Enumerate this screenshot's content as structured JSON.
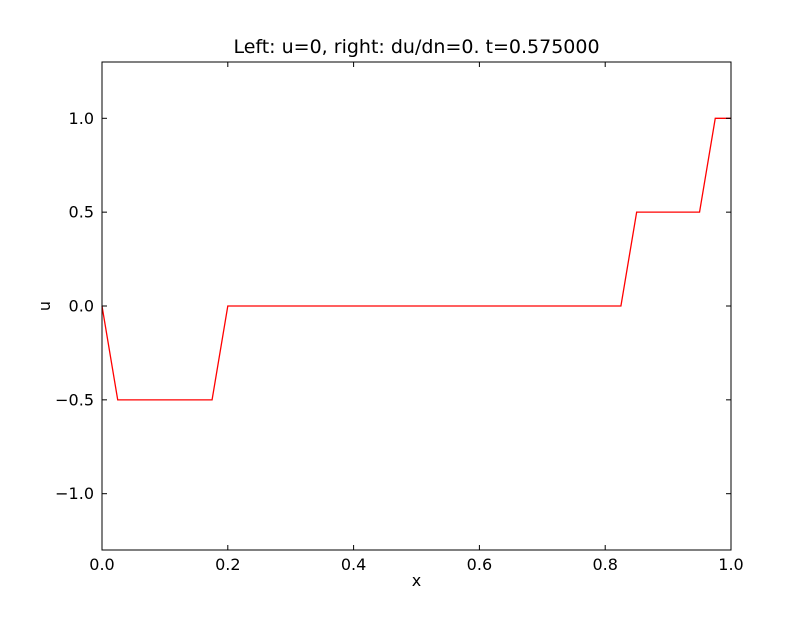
{
  "chart_data": {
    "type": "line",
    "title": "Left: u=0, right: du/dn=0. t=0.575000",
    "xlabel": "x",
    "ylabel": "u",
    "xlim": [
      0.0,
      1.0
    ],
    "ylim": [
      -1.3,
      1.3
    ],
    "grid": false,
    "x_ticks": [
      0.0,
      0.2,
      0.4,
      0.6,
      0.8,
      1.0
    ],
    "x_tick_labels": [
      "0.0",
      "0.2",
      "0.4",
      "0.6",
      "0.8",
      "1.0"
    ],
    "y_ticks": [
      -1.0,
      -0.5,
      0.0,
      0.5,
      1.0
    ],
    "y_tick_labels": [
      "−1.0",
      "−0.5",
      "0.0",
      "0.5",
      "1.0"
    ],
    "series": [
      {
        "color": "#ff0000",
        "x": [
          0.0,
          0.025,
          0.175,
          0.2,
          0.825,
          0.85,
          0.95,
          0.975,
          1.0
        ],
        "y": [
          0.0,
          -0.5,
          -0.5,
          0.0,
          0.0,
          0.5,
          0.5,
          1.0,
          1.0
        ]
      }
    ]
  }
}
